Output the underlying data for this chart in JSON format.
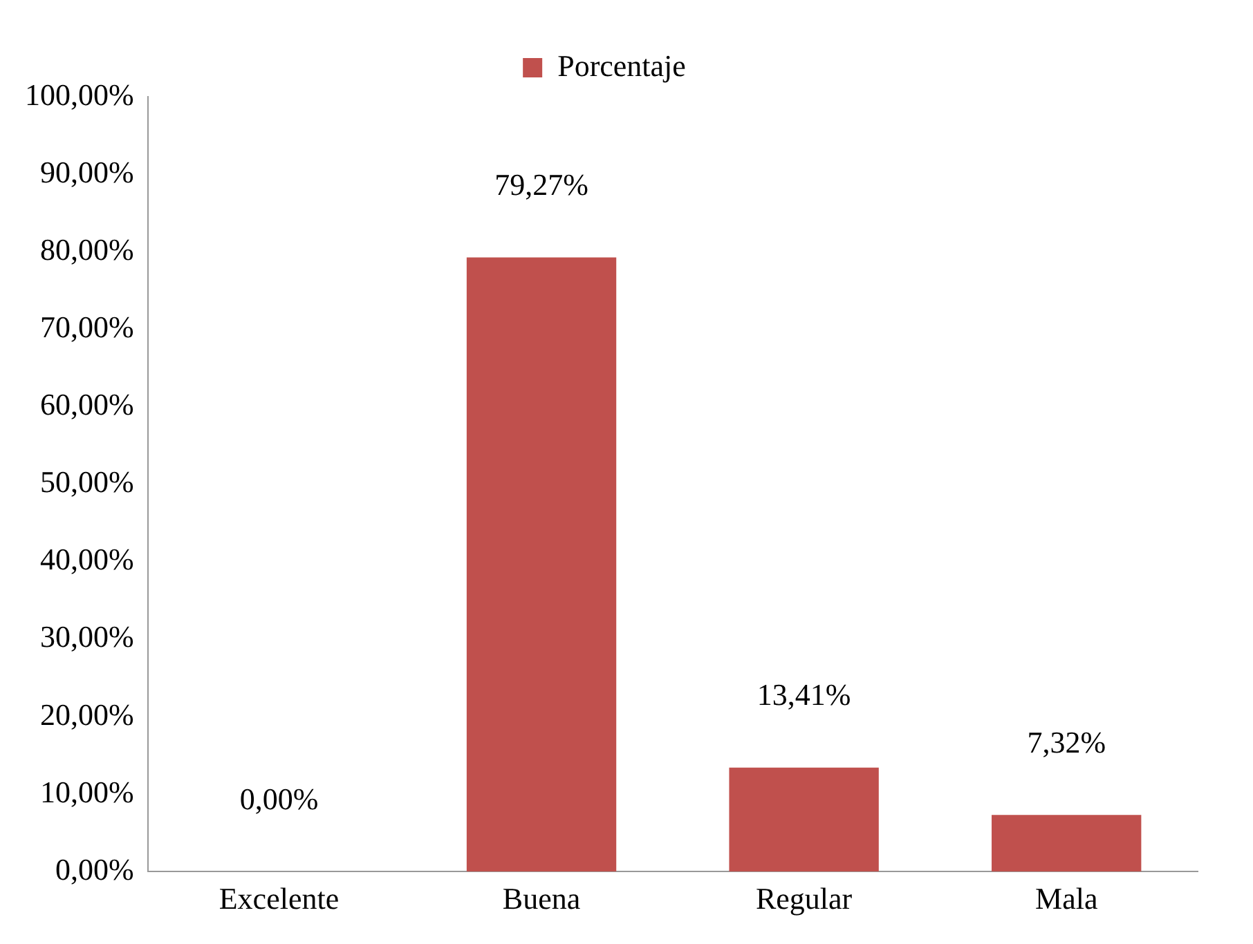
{
  "chart_data": {
    "type": "bar",
    "categories": [
      "Excelente",
      "Buena",
      "Regular",
      "Mala"
    ],
    "series": [
      {
        "name": "Porcentaje",
        "color": "#c0504d",
        "values": [
          0,
          79.27,
          13.41,
          7.32
        ]
      }
    ],
    "value_labels": [
      "0,00%",
      "79,27%",
      "13,41%",
      "7,32%"
    ],
    "ylim": [
      0,
      100
    ],
    "yticks": [
      {
        "value": 0,
        "label": "0,00%"
      },
      {
        "value": 10,
        "label": "10,00%"
      },
      {
        "value": 20,
        "label": "20,00%"
      },
      {
        "value": 30,
        "label": "30,00%"
      },
      {
        "value": 40,
        "label": "40,00%"
      },
      {
        "value": 50,
        "label": "50,00%"
      },
      {
        "value": 60,
        "label": "60,00%"
      },
      {
        "value": 70,
        "label": "70,00%"
      },
      {
        "value": 80,
        "label": "80,00%"
      },
      {
        "value": 90,
        "label": "90,00%"
      },
      {
        "value": 100,
        "label": "100,00%"
      }
    ],
    "grid": false,
    "legend": "top"
  }
}
